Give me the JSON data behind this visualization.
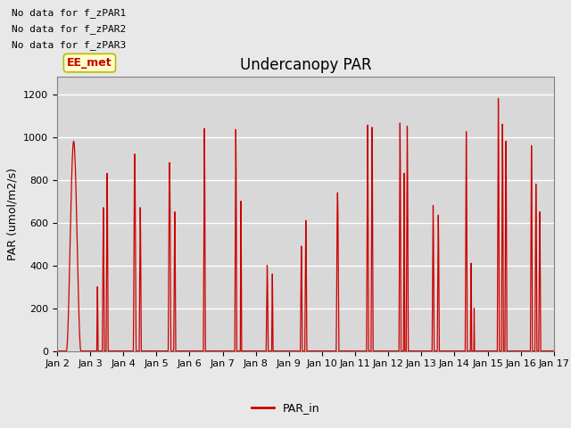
{
  "title": "Undercanopy PAR",
  "ylabel": "PAR (umol/m2/s)",
  "legend_label": "PAR_in",
  "legend_color": "#cc0000",
  "line_color": "#cc0000",
  "background_color": "#e8e8e8",
  "plot_bg_color": "#d8d8d8",
  "ylim": [
    0,
    1280
  ],
  "yticks": [
    0,
    200,
    400,
    600,
    800,
    1000,
    1200
  ],
  "xtick_labels": [
    "Jan 2",
    "Jan 3",
    "Jan 4",
    "Jan 5",
    "Jan 6",
    "Jan 7",
    "Jan 8",
    "Jan 9",
    "Jan 10",
    "Jan 11",
    "Jan 12",
    "Jan 13",
    "Jan 14",
    "Jan 15",
    "Jan 16",
    "Jan 17"
  ],
  "no_data_texts": [
    "No data for f_zPAR1",
    "No data for f_zPAR2",
    "No data for f_zPAR3"
  ],
  "ee_met_text": "EE_met",
  "title_fontsize": 12,
  "axis_fontsize": 9,
  "tick_fontsize": 8,
  "note_fontsize": 8
}
